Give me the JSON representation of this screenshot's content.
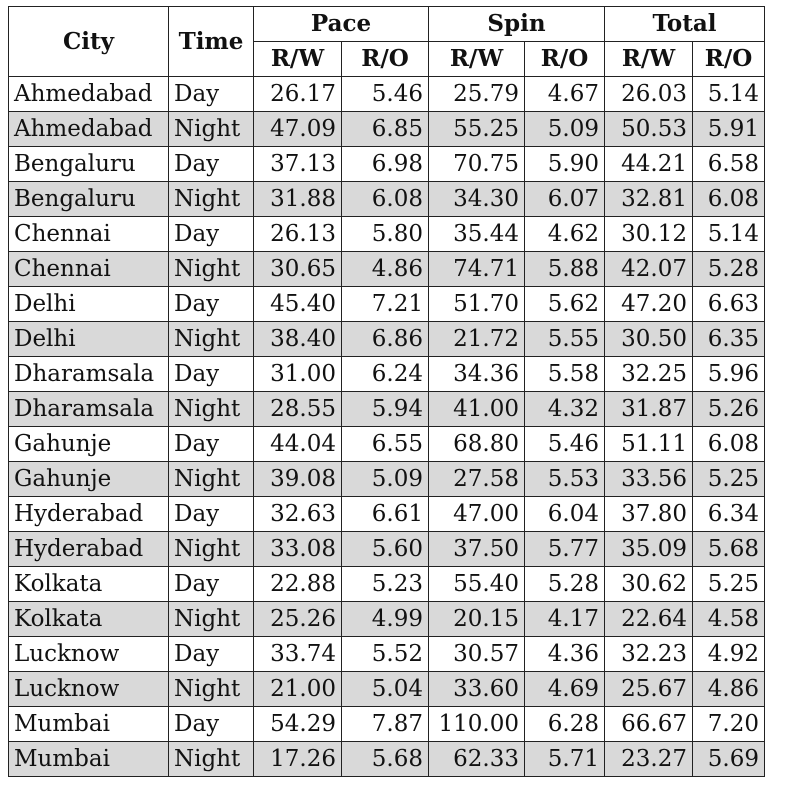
{
  "header": {
    "city": "City",
    "time": "Time",
    "groups": [
      "Pace",
      "Spin",
      "Total"
    ],
    "sub": [
      "R/W",
      "R/O",
      "R/W",
      "R/O",
      "R/W",
      "R/O"
    ]
  },
  "rows": [
    [
      "Ahmedabad",
      "Day",
      "26.17",
      "5.46",
      "25.79",
      "4.67",
      "26.03",
      "5.14"
    ],
    [
      "Ahmedabad",
      "Night",
      "47.09",
      "6.85",
      "55.25",
      "5.09",
      "50.53",
      "5.91"
    ],
    [
      "Bengaluru",
      "Day",
      "37.13",
      "6.98",
      "70.75",
      "5.90",
      "44.21",
      "6.58"
    ],
    [
      "Bengaluru",
      "Night",
      "31.88",
      "6.08",
      "34.30",
      "6.07",
      "32.81",
      "6.08"
    ],
    [
      "Chennai",
      "Day",
      "26.13",
      "5.80",
      "35.44",
      "4.62",
      "30.12",
      "5.14"
    ],
    [
      "Chennai",
      "Night",
      "30.65",
      "4.86",
      "74.71",
      "5.88",
      "42.07",
      "5.28"
    ],
    [
      "Delhi",
      "Day",
      "45.40",
      "7.21",
      "51.70",
      "5.62",
      "47.20",
      "6.63"
    ],
    [
      "Delhi",
      "Night",
      "38.40",
      "6.86",
      "21.72",
      "5.55",
      "30.50",
      "6.35"
    ],
    [
      "Dharamsala",
      "Day",
      "31.00",
      "6.24",
      "34.36",
      "5.58",
      "32.25",
      "5.96"
    ],
    [
      "Dharamsala",
      "Night",
      "28.55",
      "5.94",
      "41.00",
      "4.32",
      "31.87",
      "5.26"
    ],
    [
      "Gahunje",
      "Day",
      "44.04",
      "6.55",
      "68.80",
      "5.46",
      "51.11",
      "6.08"
    ],
    [
      "Gahunje",
      "Night",
      "39.08",
      "5.09",
      "27.58",
      "5.53",
      "33.56",
      "5.25"
    ],
    [
      "Hyderabad",
      "Day",
      "32.63",
      "6.61",
      "47.00",
      "6.04",
      "37.80",
      "6.34"
    ],
    [
      "Hyderabad",
      "Night",
      "33.08",
      "5.60",
      "37.50",
      "5.77",
      "35.09",
      "5.68"
    ],
    [
      "Kolkata",
      "Day",
      "22.88",
      "5.23",
      "55.40",
      "5.28",
      "30.62",
      "5.25"
    ],
    [
      "Kolkata",
      "Night",
      "25.26",
      "4.99",
      "20.15",
      "4.17",
      "22.64",
      "4.58"
    ],
    [
      "Lucknow",
      "Day",
      "33.74",
      "5.52",
      "30.57",
      "4.36",
      "32.23",
      "4.92"
    ],
    [
      "Lucknow",
      "Night",
      "21.00",
      "5.04",
      "33.60",
      "4.69",
      "25.67",
      "4.86"
    ],
    [
      "Mumbai",
      "Day",
      "54.29",
      "7.87",
      "110.00",
      "6.28",
      "66.67",
      "7.20"
    ],
    [
      "Mumbai",
      "Night",
      "17.26",
      "5.68",
      "62.33",
      "5.71",
      "23.27",
      "5.69"
    ]
  ],
  "colors": {
    "shade": "#d9d9d9",
    "border": "#222222"
  }
}
